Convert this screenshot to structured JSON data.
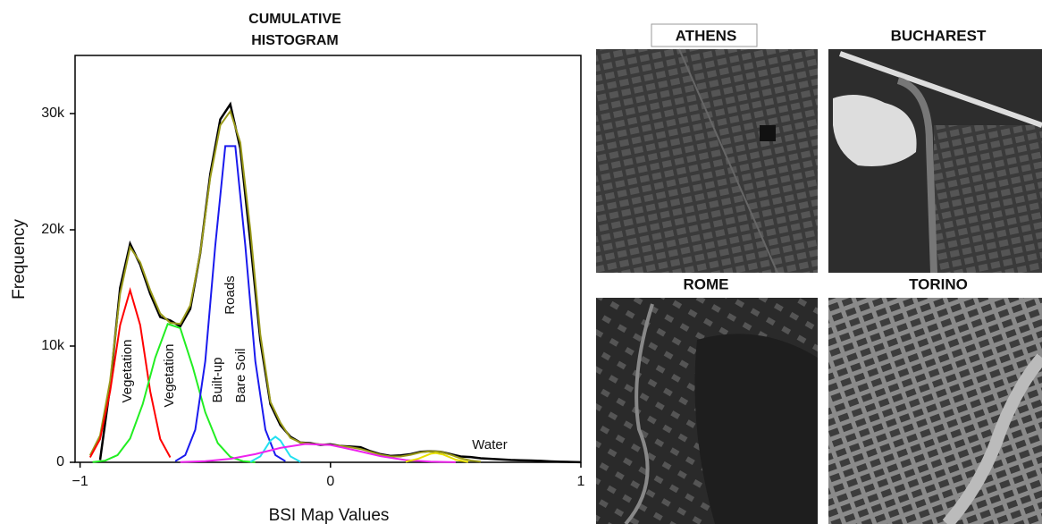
{
  "chart_data": {
    "type": "line",
    "title": [
      "CUMULATIVE",
      "HISTOGRAM"
    ],
    "xlabel": "BSI Map Values",
    "ylabel": "Frequency",
    "xlim": [
      -1.02,
      1
    ],
    "ylim": [
      0,
      35000
    ],
    "xticks": [
      {
        "value": -1,
        "label": "−1"
      },
      0,
      1
    ],
    "yticks": [
      0,
      {
        "value": 10000,
        "label": "10k"
      },
      {
        "value": 20000,
        "label": "20k"
      },
      {
        "value": 30000,
        "label": "30k"
      }
    ],
    "annotations": [
      "Vegetation",
      "Vegetation",
      "Built-up",
      "Bare Soil",
      "Roads",
      "Water"
    ],
    "series": [
      {
        "color": "#000000",
        "x": [
          -0.92,
          -0.88,
          -0.84,
          -0.8,
          -0.76,
          -0.72,
          -0.68,
          -0.64,
          -0.6,
          -0.56,
          -0.52,
          -0.48,
          -0.44,
          -0.4,
          -0.36,
          -0.32,
          -0.28,
          -0.24,
          -0.2,
          -0.16,
          -0.12,
          -0.08,
          -0.04,
          0,
          0.04,
          0.08,
          0.12,
          0.16,
          0.2,
          0.24,
          0.28,
          0.32,
          0.36,
          0.4,
          0.44,
          0.48,
          0.52,
          0.56,
          0.6,
          0.64,
          0.68,
          0.72,
          0.76,
          0.8,
          0.84,
          0.88,
          0.92,
          0.96,
          1
        ],
        "values": [
          200,
          6500,
          15000,
          18800,
          17000,
          14500,
          12500,
          12200,
          11700,
          13200,
          18000,
          24800,
          29500,
          30800,
          27000,
          19000,
          10500,
          5000,
          3200,
          2200,
          1700,
          1650,
          1500,
          1550,
          1400,
          1350,
          1300,
          950,
          700,
          550,
          600,
          700,
          900,
          950,
          900,
          700,
          500,
          450,
          350,
          300,
          250,
          200,
          180,
          150,
          120,
          80,
          50,
          30,
          10
        ]
      },
      {
        "color": "#9a9a1a",
        "x": [
          -0.96,
          -0.92,
          -0.88,
          -0.84,
          -0.8,
          -0.76,
          -0.72,
          -0.68,
          -0.64,
          -0.6,
          -0.56,
          -0.52,
          -0.48,
          -0.44,
          -0.4,
          -0.36,
          -0.32,
          -0.28,
          -0.24,
          -0.2,
          -0.16,
          -0.12,
          -0.08,
          -0.04,
          0,
          0.04,
          0.08,
          0.12,
          0.16,
          0.2,
          0.24,
          0.28,
          0.32,
          0.36,
          0.4,
          0.44,
          0.48,
          0.52,
          0.56,
          0.6
        ],
        "values": [
          600,
          2300,
          7000,
          14500,
          18500,
          17200,
          14800,
          12800,
          12000,
          11900,
          13500,
          18000,
          24500,
          29000,
          30200,
          27500,
          20000,
          11000,
          5200,
          3400,
          2100,
          1700,
          1600,
          1550,
          1500,
          1400,
          1300,
          1150,
          900,
          650,
          500,
          500,
          650,
          850,
          950,
          900,
          650,
          350,
          150,
          60
        ]
      },
      {
        "color": "#ff0000",
        "x": [
          -0.96,
          -0.92,
          -0.88,
          -0.84,
          -0.8,
          -0.76,
          -0.72,
          -0.68,
          -0.64
        ],
        "values": [
          420,
          2000,
          6100,
          11800,
          14800,
          11800,
          6100,
          2000,
          420
        ]
      },
      {
        "color": "#22ee22",
        "x": [
          -0.95,
          -0.9,
          -0.85,
          -0.8,
          -0.75,
          -0.7,
          -0.65,
          -0.6,
          -0.55,
          -0.5,
          -0.45,
          -0.4,
          -0.35,
          -0.3
        ],
        "values": [
          20,
          135,
          620,
          2050,
          5000,
          9000,
          11900,
          11550,
          8200,
          4300,
          1650,
          460,
          100,
          10
        ]
      },
      {
        "color": "#1a1aee",
        "x": [
          -0.62,
          -0.58,
          -0.54,
          -0.5,
          -0.46,
          -0.42,
          -0.38,
          -0.34,
          -0.3,
          -0.26,
          -0.22,
          -0.18
        ],
        "values": [
          95,
          615,
          2800,
          8700,
          18650,
          27200,
          27200,
          18650,
          8700,
          2800,
          615,
          95
        ]
      },
      {
        "color": "#22e0f0",
        "x": [
          -0.32,
          -0.28,
          -0.24,
          -0.22,
          -0.2,
          -0.16,
          -0.12
        ],
        "values": [
          37,
          510,
          1870,
          2200,
          1870,
          510,
          37
        ]
      },
      {
        "color": "#ee22ee",
        "x": [
          -0.6,
          -0.5,
          -0.4,
          -0.3,
          -0.2,
          -0.1,
          0,
          0.1,
          0.2,
          0.3,
          0.4,
          0.5
        ],
        "values": [
          21,
          92,
          300,
          700,
          1240,
          1580,
          1490,
          1030,
          520,
          190,
          53,
          10
        ]
      },
      {
        "color": "#e8e000",
        "x": [
          0.3,
          0.35,
          0.4,
          0.42,
          0.45,
          0.5,
          0.55
        ],
        "values": [
          45,
          300,
          740,
          800,
          670,
          220,
          27
        ]
      }
    ]
  },
  "panels": [
    {
      "label": "ATHENS"
    },
    {
      "label": "BUCHAREST"
    },
    {
      "label": "ROME"
    },
    {
      "label": "TORINO"
    }
  ]
}
